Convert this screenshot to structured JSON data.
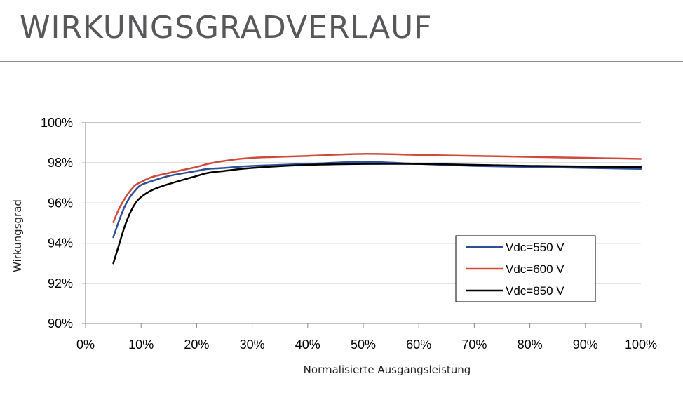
{
  "page": {
    "title": "WIRKUNGSGRADVERLAUF"
  },
  "chart_data": {
    "type": "line",
    "xlabel": "Normalisierte Ausgangsleistung",
    "ylabel": "Wirkungsgrad",
    "xlim": [
      0,
      100
    ],
    "ylim": [
      90,
      100
    ],
    "x_ticks": [
      "0%",
      "10%",
      "20%",
      "30%",
      "40%",
      "50%",
      "60%",
      "70%",
      "80%",
      "90%",
      "100%"
    ],
    "y_ticks": [
      "90%",
      "92%",
      "94%",
      "96%",
      "98%",
      "100%"
    ],
    "grid": "horizontal",
    "legend_position": "right",
    "series": [
      {
        "name": "Vdc=550 V",
        "color": "#2e4e95",
        "x": [
          5,
          6,
          7,
          8,
          9,
          10,
          12,
          15,
          20,
          22,
          25,
          30,
          40,
          50,
          60,
          70,
          80,
          90,
          100
        ],
        "y": [
          94.3,
          95.1,
          95.8,
          96.3,
          96.65,
          96.9,
          97.1,
          97.35,
          97.6,
          97.7,
          97.75,
          97.85,
          97.95,
          98.05,
          97.95,
          97.85,
          97.8,
          97.75,
          97.7
        ]
      },
      {
        "name": "Vdc=600 V",
        "color": "#d04a3b",
        "x": [
          5,
          6,
          7,
          8,
          9,
          10,
          12,
          15,
          20,
          22,
          25,
          30,
          40,
          50,
          60,
          70,
          80,
          90,
          100
        ],
        "y": [
          95.05,
          95.7,
          96.2,
          96.6,
          96.9,
          97.05,
          97.3,
          97.5,
          97.8,
          97.95,
          98.1,
          98.25,
          98.35,
          98.45,
          98.4,
          98.35,
          98.3,
          98.25,
          98.2
        ]
      },
      {
        "name": "Vdc=850 V",
        "color": "#000000",
        "x": [
          5,
          6,
          7,
          8,
          9,
          10,
          12,
          15,
          20,
          22,
          25,
          30,
          40,
          50,
          60,
          70,
          80,
          90,
          100
        ],
        "y": [
          93.0,
          93.9,
          94.8,
          95.5,
          96.0,
          96.3,
          96.65,
          96.95,
          97.35,
          97.5,
          97.6,
          97.75,
          97.9,
          97.95,
          97.95,
          97.9,
          97.85,
          97.82,
          97.8
        ]
      }
    ]
  }
}
